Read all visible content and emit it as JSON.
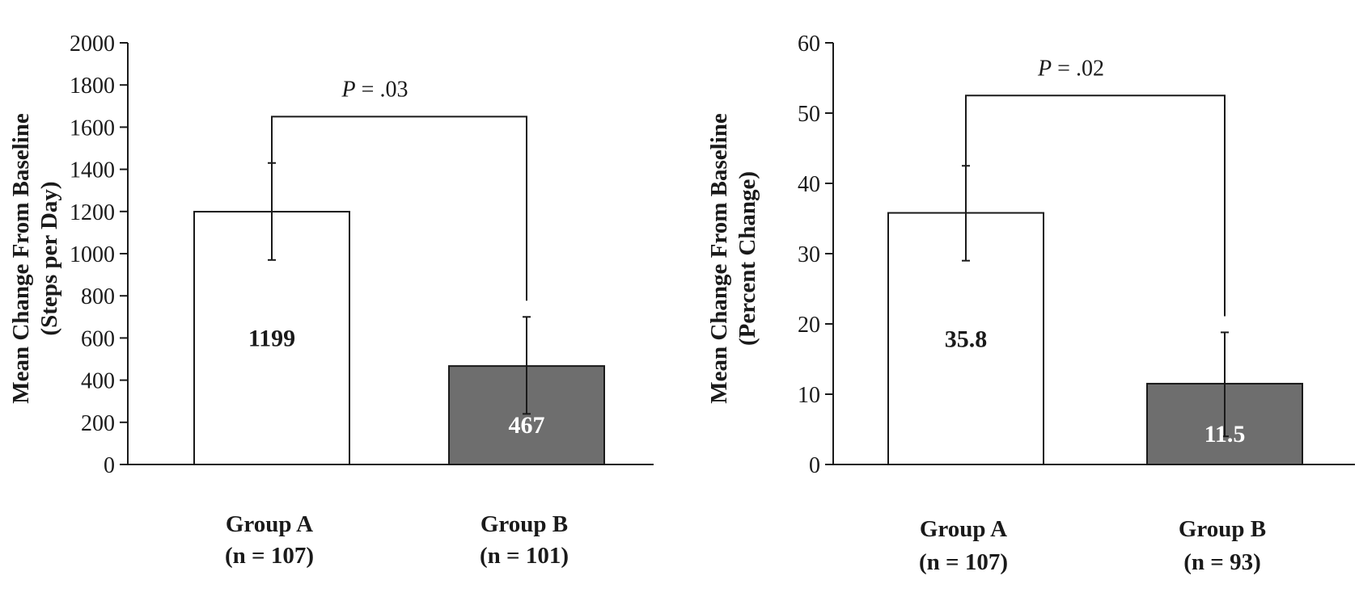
{
  "chart_data": [
    {
      "type": "bar",
      "ylabel_line1": "Mean Change From Baseline",
      "ylabel_line2": "(Steps per Day)",
      "ylim": [
        0,
        2000
      ],
      "yticks": [
        0,
        200,
        400,
        600,
        800,
        1000,
        1200,
        1400,
        1600,
        1800,
        2000
      ],
      "categories": [
        "Group A",
        "Group B"
      ],
      "category_n": [
        "(n = 107)",
        "(n = 101)"
      ],
      "values": [
        1199,
        467
      ],
      "value_labels": [
        "1199",
        "467"
      ],
      "error_low": [
        970,
        240
      ],
      "error_high": [
        1430,
        700
      ],
      "colors": [
        "#ffffff",
        "#6e6e6e"
      ],
      "label_colors": [
        "#1a1a1a",
        "#ffffff"
      ],
      "significance": {
        "label_prefix": "P",
        "label_rest": " = .03",
        "bracket_y": 1650
      }
    },
    {
      "type": "bar",
      "ylabel_line1": "Mean Change From Baseline",
      "ylabel_line2": "(Percent Change)",
      "ylim": [
        0,
        60
      ],
      "yticks": [
        0,
        10,
        20,
        30,
        40,
        50,
        60
      ],
      "categories": [
        "Group A",
        "Group B"
      ],
      "category_n": [
        "(n = 107)",
        "(n = 93)"
      ],
      "values": [
        35.8,
        11.5
      ],
      "value_labels": [
        "35.8",
        "11.5"
      ],
      "error_low": [
        29,
        4
      ],
      "error_high": [
        42.5,
        18.8
      ],
      "colors": [
        "#ffffff",
        "#6e6e6e"
      ],
      "label_colors": [
        "#1a1a1a",
        "#ffffff"
      ],
      "significance": {
        "label_prefix": "P",
        "label_rest": " = .02",
        "bracket_y": 52.5
      }
    }
  ]
}
